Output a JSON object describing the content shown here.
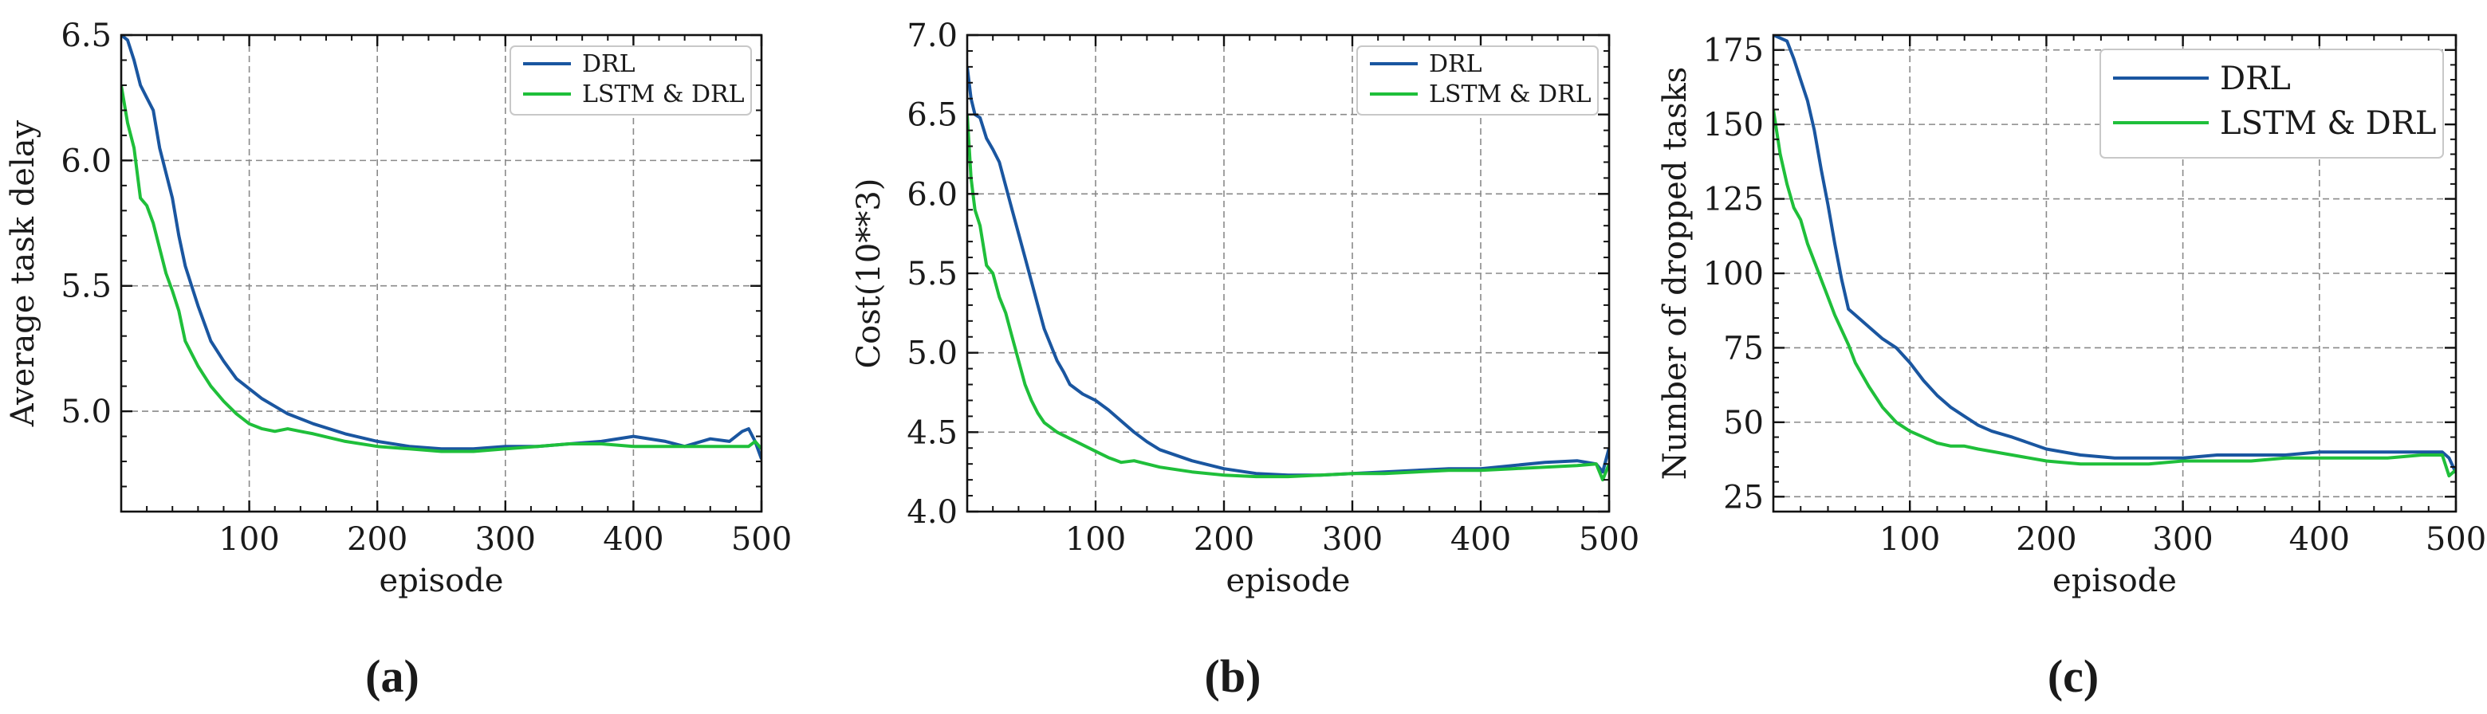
{
  "chart_data": [
    {
      "type": "line",
      "panel": "(a)",
      "title": "",
      "xlabel": "episode",
      "ylabel": "Average task delay",
      "xlim": [
        0,
        500
      ],
      "ylim": [
        4.6,
        6.5
      ],
      "xticks": [
        100,
        200,
        300,
        400,
        500
      ],
      "yticks": [
        5.0,
        5.5,
        6.0,
        6.5
      ],
      "ytick_labels": [
        "5.0",
        "5.5",
        "6.0",
        "6.5"
      ],
      "grid": true,
      "legend_position": "top-right",
      "legend_size": "small",
      "series": [
        {
          "name": "DRL",
          "color": "#1a56a0",
          "x": [
            0,
            5,
            10,
            15,
            20,
            25,
            30,
            35,
            40,
            45,
            50,
            55,
            60,
            65,
            70,
            80,
            90,
            100,
            110,
            120,
            130,
            140,
            150,
            175,
            200,
            225,
            250,
            275,
            300,
            325,
            350,
            375,
            400,
            425,
            440,
            460,
            475,
            485,
            490,
            495,
            500
          ],
          "y": [
            6.5,
            6.48,
            6.4,
            6.3,
            6.25,
            6.2,
            6.05,
            5.95,
            5.85,
            5.7,
            5.58,
            5.5,
            5.42,
            5.35,
            5.28,
            5.2,
            5.13,
            5.09,
            5.05,
            5.02,
            4.99,
            4.97,
            4.95,
            4.91,
            4.88,
            4.86,
            4.85,
            4.85,
            4.86,
            4.86,
            4.87,
            4.88,
            4.9,
            4.88,
            4.86,
            4.89,
            4.88,
            4.92,
            4.93,
            4.88,
            4.81
          ]
        },
        {
          "name": "LSTM & DRL",
          "color": "#1fbf3a",
          "x": [
            0,
            5,
            10,
            15,
            20,
            25,
            30,
            35,
            40,
            45,
            50,
            55,
            60,
            70,
            80,
            90,
            100,
            110,
            120,
            130,
            140,
            150,
            175,
            200,
            225,
            250,
            275,
            300,
            325,
            350,
            375,
            400,
            425,
            450,
            475,
            490,
            495,
            500
          ],
          "y": [
            6.3,
            6.15,
            6.05,
            5.85,
            5.82,
            5.75,
            5.65,
            5.55,
            5.48,
            5.4,
            5.28,
            5.23,
            5.18,
            5.1,
            5.04,
            4.99,
            4.95,
            4.93,
            4.92,
            4.93,
            4.92,
            4.91,
            4.88,
            4.86,
            4.85,
            4.84,
            4.84,
            4.85,
            4.86,
            4.87,
            4.87,
            4.86,
            4.86,
            4.86,
            4.86,
            4.86,
            4.88,
            4.85
          ]
        }
      ]
    },
    {
      "type": "line",
      "panel": "(b)",
      "title": "",
      "xlabel": "episode",
      "ylabel": "Cost(10**3)",
      "xlim": [
        0,
        500
      ],
      "ylim": [
        4.0,
        7.0
      ],
      "xticks": [
        100,
        200,
        300,
        400,
        500
      ],
      "yticks": [
        4.0,
        4.5,
        5.0,
        5.5,
        6.0,
        6.5,
        7.0
      ],
      "ytick_labels": [
        "4.0",
        "4.5",
        "5.0",
        "5.5",
        "6.0",
        "6.5",
        "7.0"
      ],
      "grid": true,
      "legend_position": "top-right",
      "legend_size": "small",
      "series": [
        {
          "name": "DRL",
          "color": "#1a56a0",
          "x": [
            0,
            3,
            6,
            10,
            15,
            20,
            25,
            30,
            35,
            40,
            45,
            50,
            55,
            60,
            65,
            70,
            75,
            80,
            90,
            100,
            110,
            120,
            130,
            140,
            150,
            175,
            200,
            225,
            250,
            275,
            300,
            325,
            350,
            375,
            400,
            425,
            450,
            475,
            490,
            495,
            500
          ],
          "y": [
            6.8,
            6.6,
            6.5,
            6.48,
            6.35,
            6.28,
            6.2,
            6.05,
            5.9,
            5.75,
            5.6,
            5.45,
            5.3,
            5.15,
            5.05,
            4.95,
            4.88,
            4.8,
            4.74,
            4.7,
            4.64,
            4.57,
            4.5,
            4.44,
            4.39,
            4.32,
            4.27,
            4.24,
            4.23,
            4.23,
            4.24,
            4.25,
            4.26,
            4.27,
            4.27,
            4.29,
            4.31,
            4.32,
            4.3,
            4.25,
            4.4
          ]
        },
        {
          "name": "LSTM & DRL",
          "color": "#1fbf3a",
          "x": [
            0,
            3,
            6,
            10,
            15,
            20,
            25,
            30,
            35,
            40,
            45,
            50,
            55,
            60,
            70,
            80,
            90,
            100,
            110,
            120,
            130,
            140,
            150,
            175,
            200,
            225,
            250,
            275,
            300,
            325,
            350,
            375,
            400,
            425,
            450,
            475,
            490,
            495,
            500
          ],
          "y": [
            6.5,
            6.1,
            5.9,
            5.8,
            5.55,
            5.5,
            5.35,
            5.25,
            5.1,
            4.95,
            4.8,
            4.7,
            4.62,
            4.56,
            4.5,
            4.46,
            4.42,
            4.38,
            4.34,
            4.31,
            4.32,
            4.3,
            4.28,
            4.25,
            4.23,
            4.22,
            4.22,
            4.23,
            4.24,
            4.24,
            4.25,
            4.26,
            4.26,
            4.27,
            4.28,
            4.29,
            4.3,
            4.2,
            4.3
          ]
        }
      ]
    },
    {
      "type": "line",
      "panel": "(c)",
      "title": "",
      "xlabel": "episode",
      "ylabel": "Number of dropped tasks",
      "xlim": [
        0,
        500
      ],
      "ylim": [
        20,
        180
      ],
      "xticks": [
        100,
        200,
        300,
        400,
        500
      ],
      "yticks": [
        25,
        50,
        75,
        100,
        125,
        150,
        175
      ],
      "ytick_labels": [
        "25",
        "50",
        "75",
        "100",
        "125",
        "150",
        "175"
      ],
      "grid": true,
      "legend_position": "top-right",
      "legend_size": "large",
      "series": [
        {
          "name": "DRL",
          "color": "#1a56a0",
          "x": [
            0,
            10,
            15,
            20,
            25,
            30,
            35,
            40,
            45,
            50,
            55,
            60,
            70,
            80,
            90,
            100,
            110,
            120,
            130,
            140,
            150,
            160,
            175,
            200,
            225,
            250,
            275,
            300,
            325,
            350,
            375,
            400,
            425,
            450,
            475,
            490,
            495,
            500
          ],
          "y": [
            180,
            178,
            172,
            165,
            158,
            148,
            135,
            123,
            110,
            98,
            88,
            86,
            82,
            78,
            75,
            70,
            64,
            59,
            55,
            52,
            49,
            47,
            45,
            41,
            39,
            38,
            38,
            38,
            39,
            39,
            39,
            40,
            40,
            40,
            40,
            40,
            38,
            33
          ]
        },
        {
          "name": "LSTM & DRL",
          "color": "#1fbf3a",
          "x": [
            0,
            5,
            10,
            15,
            20,
            25,
            30,
            35,
            40,
            45,
            50,
            55,
            60,
            70,
            80,
            90,
            100,
            110,
            120,
            130,
            140,
            150,
            175,
            200,
            225,
            250,
            275,
            300,
            325,
            350,
            375,
            400,
            425,
            450,
            475,
            490,
            495,
            500
          ],
          "y": [
            155,
            140,
            130,
            122,
            118,
            110,
            104,
            98,
            92,
            86,
            81,
            76,
            70,
            62,
            55,
            50,
            47,
            45,
            43,
            42,
            42,
            41,
            39,
            37,
            36,
            36,
            36,
            37,
            37,
            37,
            38,
            38,
            38,
            38,
            39,
            39,
            32,
            34
          ]
        }
      ]
    }
  ],
  "captions": [
    "(a)",
    "(b)",
    "(c)"
  ]
}
